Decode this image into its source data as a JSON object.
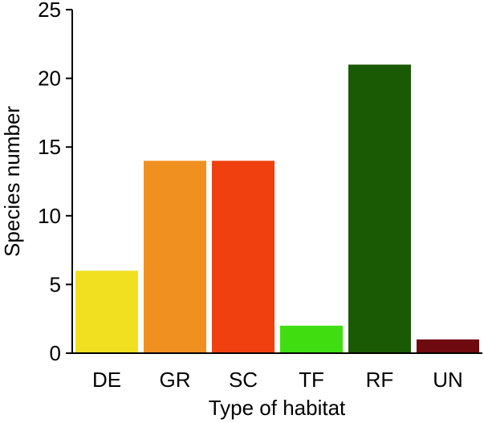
{
  "chart_data": {
    "type": "bar",
    "categories": [
      "DE",
      "GR",
      "SC",
      "TF",
      "RF",
      "UN"
    ],
    "values": [
      6,
      14,
      14,
      2,
      21,
      1
    ],
    "colors": [
      "#f0e020",
      "#f09020",
      "#f04010",
      "#40dd10",
      "#1a5a05",
      "#6e0a10"
    ],
    "xlabel": "Type of habitat",
    "ylabel": "Species number",
    "ylim": [
      0,
      25
    ],
    "yticks": [
      "0",
      "5",
      "10",
      "15",
      "20",
      "25"
    ],
    "grid": false,
    "legend": "none"
  }
}
